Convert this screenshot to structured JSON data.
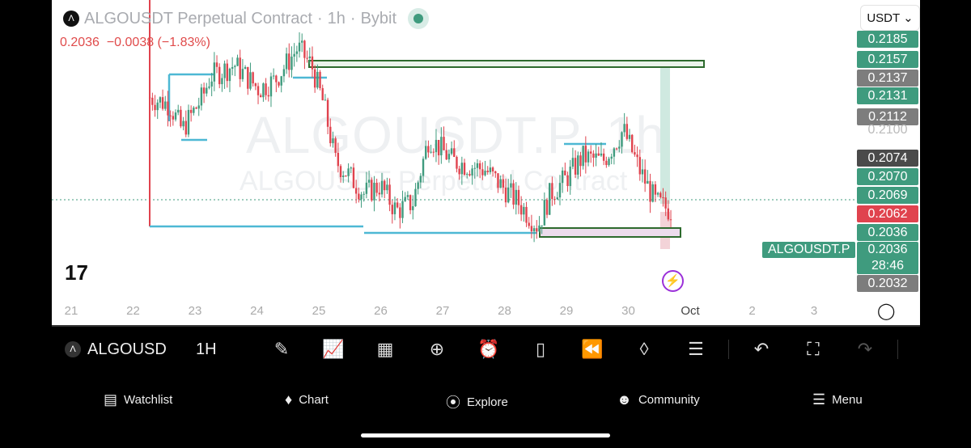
{
  "header": {
    "title": "ALGOUSDT Perpetual Contract",
    "interval": "1h",
    "exchange": "Bybit",
    "last": "0.2036",
    "change": "−0.0038 (−1.83%)",
    "currency": "USDT ⌄"
  },
  "watermark": {
    "symbol": "ALGOUSDT.P, 1h",
    "name": "ALGOUSDT Perpetual Contract"
  },
  "price_labels": [
    {
      "text": "0.2185",
      "style": "g"
    },
    {
      "text": "0.2157",
      "style": "g"
    },
    {
      "text": "0.2137",
      "style": "gr"
    },
    {
      "text": "0.2131",
      "style": "g"
    },
    {
      "text": "0.2112",
      "style": "gr"
    },
    {
      "text": "0.2100",
      "style": "axis"
    },
    {
      "text": "0.2074",
      "style": "dk"
    },
    {
      "text": "0.2070",
      "style": "g"
    },
    {
      "text": "0.2069",
      "style": "g"
    },
    {
      "text": "0.2062",
      "style": "rd"
    },
    {
      "text": "0.2036",
      "style": "g"
    },
    {
      "text": "0.2036",
      "style": "g"
    },
    {
      "text": "0.2032",
      "style": "gr"
    }
  ],
  "countdown": "28:46",
  "symbol_tag": "ALGOUSDT.P",
  "x_axis": [
    "21",
    "22",
    "23",
    "24",
    "25",
    "26",
    "27",
    "28",
    "29",
    "30",
    "Oct",
    "2",
    "3"
  ],
  "colors": {
    "up": "#3f9b7e",
    "down": "#e0434e",
    "level": "#4db8d4",
    "zone": "#2d6a2d"
  },
  "price_path": [
    [
      22.27,
      0.2131
    ],
    [
      22.59,
      0.2126
    ],
    [
      22.79,
      0.2108
    ],
    [
      23.12,
      0.2131
    ],
    [
      23.25,
      0.2146
    ],
    [
      23.64,
      0.2154
    ],
    [
      24.03,
      0.2137
    ],
    [
      24.29,
      0.2143
    ],
    [
      24.66,
      0.2166
    ],
    [
      24.88,
      0.2154
    ],
    [
      25.08,
      0.2126
    ],
    [
      25.27,
      0.2086
    ],
    [
      25.47,
      0.2077
    ],
    [
      25.73,
      0.2063
    ],
    [
      25.99,
      0.2069
    ],
    [
      26.25,
      0.2051
    ],
    [
      26.52,
      0.2057
    ],
    [
      26.78,
      0.2103
    ],
    [
      27.17,
      0.2086
    ],
    [
      27.69,
      0.208
    ],
    [
      28.22,
      0.2057
    ],
    [
      28.54,
      0.204
    ],
    [
      28.74,
      0.2063
    ],
    [
      29.0,
      0.2074
    ],
    [
      29.26,
      0.2089
    ],
    [
      29.59,
      0.2086
    ],
    [
      29.92,
      0.2108
    ],
    [
      30.18,
      0.208
    ],
    [
      30.44,
      0.2057
    ],
    [
      30.7,
      0.2051
    ]
  ],
  "toolbar": {
    "symbol": "ALGOUSD",
    "interval": "1H"
  },
  "nav": [
    {
      "icon": "watchlist-icon",
      "label": "Watchlist"
    },
    {
      "icon": "chart-icon",
      "label": "Chart"
    },
    {
      "icon": "explore-icon",
      "label": "Explore"
    },
    {
      "icon": "community-icon",
      "label": "Community"
    },
    {
      "icon": "menu-icon",
      "label": "Menu"
    }
  ]
}
